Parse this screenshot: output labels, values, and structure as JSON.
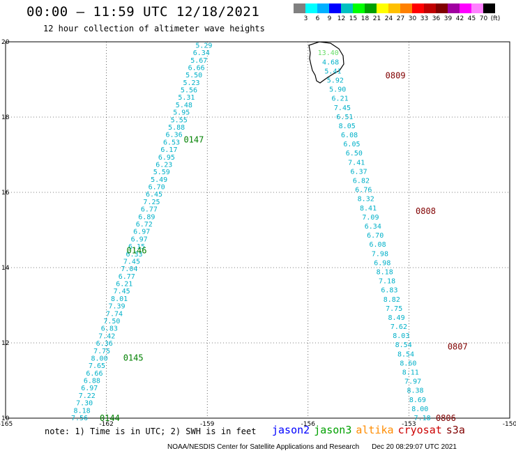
{
  "header": {
    "title": "00:00 — 11:59 UTC 12/18/2021",
    "subtitle": "12 hour collection of altimeter wave heights"
  },
  "colorbar": {
    "colors": [
      "#808080",
      "#00ffff",
      "#00b0ff",
      "#0000ff",
      "#00c0c0",
      "#00ff00",
      "#00a000",
      "#ffff00",
      "#ffc000",
      "#ff8000",
      "#ff0000",
      "#c00000",
      "#800000",
      "#a000a0",
      "#ff00ff",
      "#ff80ff",
      "#000000"
    ],
    "labels": [
      "",
      "3",
      "6",
      "9",
      "12",
      "15",
      "18",
      "21",
      "24",
      "27",
      "30",
      "33",
      "36",
      "39",
      "42",
      "45",
      "70",
      "(ft)"
    ]
  },
  "footer": {
    "note": "note: 1) Time is in UTC; 2) SWH is in feet",
    "satellites": [
      {
        "name": "jason2",
        "color": "#0000ff"
      },
      {
        "name": "jason3",
        "color": "#00a000"
      },
      {
        "name": "altika",
        "color": "#ff8c00"
      },
      {
        "name": "cryosat",
        "color": "#cc0000"
      },
      {
        "name": "s3a",
        "color": "#800000"
      }
    ],
    "credit": "NOAA/NESDIS Center for Satellite Applications and Research",
    "timestamp": "Dec 20 08:29:07 UTC 2021"
  },
  "chart_data": {
    "type": "scatter",
    "title": "12 hour collection of altimeter wave heights",
    "xlabel": "",
    "ylabel": "",
    "xlim": [
      -165,
      -150
    ],
    "ylim": [
      10,
      20
    ],
    "x_ticks": [
      "-165",
      "-162",
      "-159",
      "-156",
      "-153",
      "-150"
    ],
    "y_ticks": [
      "10",
      "12",
      "14",
      "16",
      "18",
      "20"
    ],
    "grid": true,
    "series": [
      {
        "name": "jason3",
        "color": "#00b0c8",
        "lon_start": -162.8,
        "lat_start": 10.0,
        "lon_end": -159.1,
        "lat_end": 19.9,
        "values": [
          7.56,
          8.18,
          7.3,
          7.22,
          6.97,
          6.88,
          6.66,
          7.65,
          8.0,
          7.75,
          6.36,
          7.42,
          6.83,
          7.5,
          7.74,
          7.39,
          8.01,
          7.45,
          6.21,
          6.77,
          7.04,
          7.45,
          6.33,
          6.15,
          6.97,
          6.97,
          6.72,
          6.89,
          6.77,
          7.25,
          6.45,
          6.7,
          5.49,
          5.59,
          6.23,
          6.95,
          6.17,
          6.53,
          6.36,
          5.88,
          5.55,
          5.95,
          5.48,
          5.31,
          5.56,
          5.23,
          5.5,
          6.66,
          5.67,
          6.34,
          5.29
        ]
      },
      {
        "name": "s3a",
        "color": "#00b0c8",
        "lon_start": -152.6,
        "lat_start": 10.0,
        "lon_end": -155.4,
        "lat_end": 19.7,
        "values": [
          7.18,
          8.0,
          8.69,
          8.38,
          7.97,
          8.11,
          8.6,
          8.54,
          8.54,
          8.03,
          7.62,
          8.49,
          7.75,
          8.82,
          6.83,
          7.18,
          8.18,
          6.98,
          7.98,
          6.08,
          6.7,
          6.34,
          7.09,
          8.41,
          8.32,
          6.76,
          6.82,
          6.37,
          7.41,
          6.5,
          6.05,
          6.08,
          8.05,
          6.51,
          7.45,
          6.21,
          5.9,
          5.92,
          5.41,
          4.68,
          13.4
        ]
      }
    ],
    "pass_times": [
      {
        "label": "0144",
        "lon": -162.2,
        "lat": 10.0,
        "color": "#008000"
      },
      {
        "label": "0145",
        "lon": -161.5,
        "lat": 11.6,
        "color": "#008000"
      },
      {
        "label": "0146",
        "lon": -161.4,
        "lat": 14.45,
        "color": "#008000"
      },
      {
        "label": "0147",
        "lon": -159.7,
        "lat": 17.4,
        "color": "#008000"
      },
      {
        "label": "0806",
        "lon": -152.2,
        "lat": 10.0,
        "color": "#800000"
      },
      {
        "label": "0807",
        "lon": -151.85,
        "lat": 11.9,
        "color": "#800000"
      },
      {
        "label": "0808",
        "lon": -152.8,
        "lat": 15.5,
        "color": "#800000"
      },
      {
        "label": "0809",
        "lon": -153.7,
        "lat": 19.1,
        "color": "#800000"
      }
    ],
    "high_color": "#66dd66",
    "high_threshold": 12
  }
}
